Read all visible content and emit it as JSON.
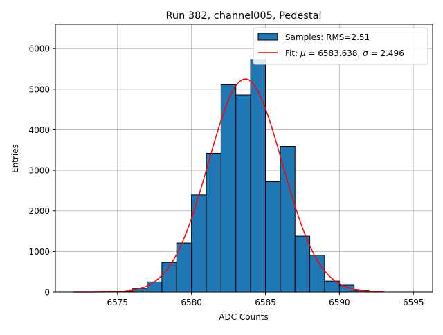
{
  "chart_data": {
    "type": "bar",
    "title": "Run 382, channel005, Pedestal",
    "xlabel": "ADC Counts",
    "ylabel": "Entries",
    "xlim": [
      6570.8,
      6596.3
    ],
    "ylim": [
      0,
      6600
    ],
    "xticks": [
      6575,
      6580,
      6585,
      6590,
      6595
    ],
    "yticks": [
      0,
      1000,
      2000,
      3000,
      4000,
      5000,
      6000
    ],
    "grid": true,
    "legend_position": "top-right",
    "bin_width": 1,
    "histogram": {
      "name": "Samples: RMS=2.51",
      "color": "#1f77b4",
      "bin_starts": [
        6575,
        6576,
        6577,
        6578,
        6579,
        6580,
        6581,
        6582,
        6583,
        6584,
        6585,
        6586,
        6587,
        6588,
        6589,
        6590,
        6591,
        6592
      ],
      "values": [
        15,
        90,
        250,
        730,
        1210,
        2390,
        3420,
        5110,
        4860,
        5730,
        2720,
        3590,
        1380,
        910,
        270,
        170,
        40,
        8
      ]
    },
    "fit": {
      "name_prefix": "Fit: ",
      "mu_label": "μ",
      "mu_value": "6583.638",
      "sigma_label": "σ",
      "sigma_value": "2.496",
      "color": "#ff0000",
      "mu": 6583.638,
      "sigma": 2.496,
      "amplitude": 5250,
      "x_range": [
        6572,
        6593
      ]
    }
  }
}
